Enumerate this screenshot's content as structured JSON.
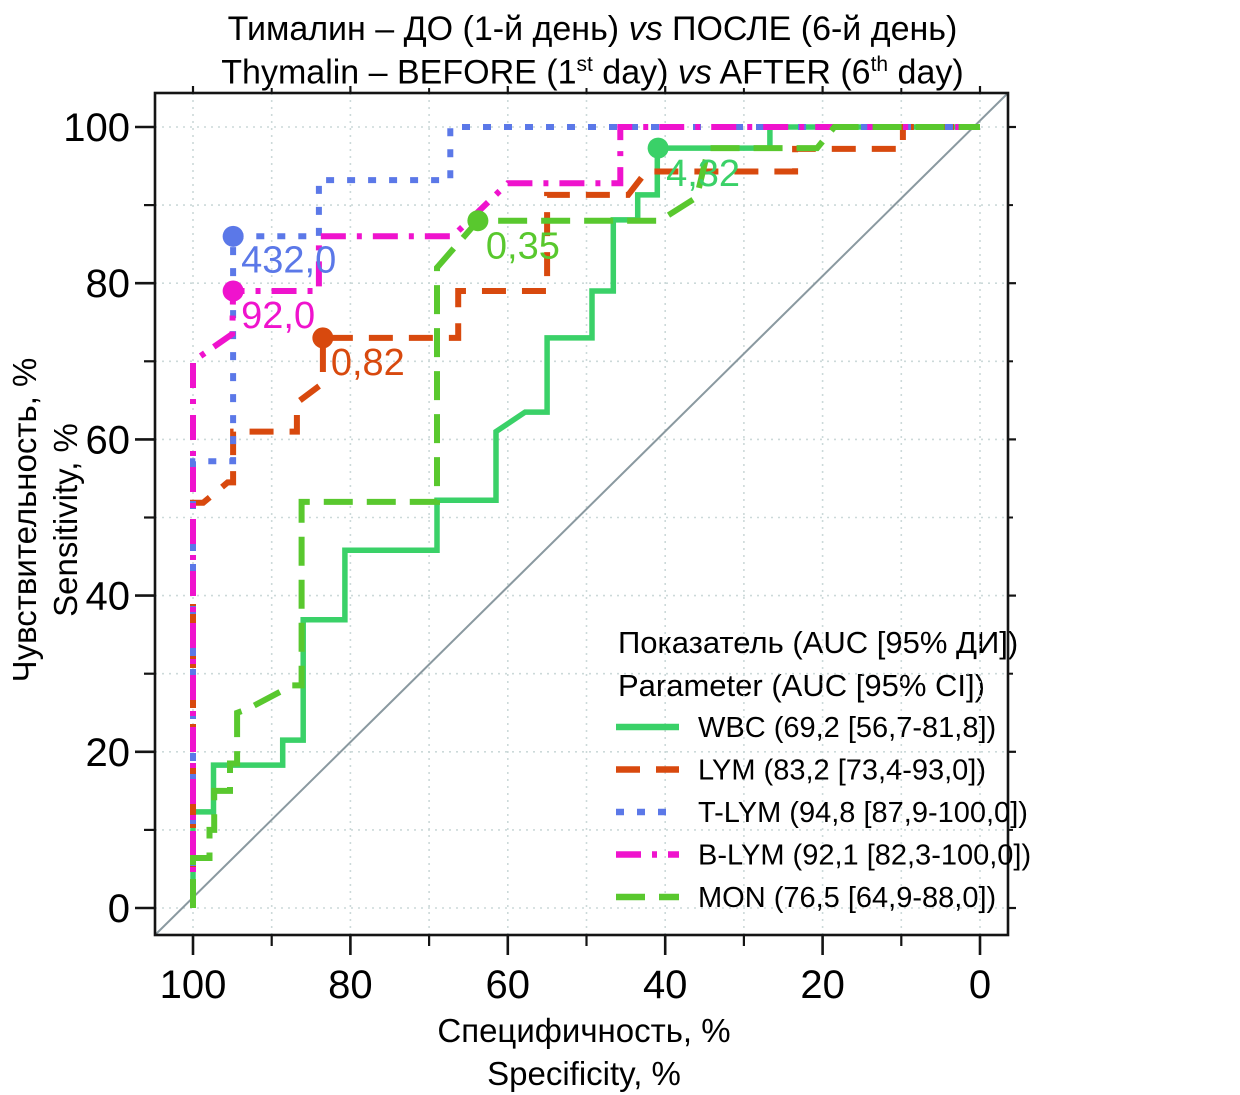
{
  "title": {
    "line1": {
      "pre": "Тималин – ДО (1-й день) ",
      "vs": "vs",
      "post": " ПОСЛЕ (6-й день)"
    },
    "line2": {
      "pre": "Thymalin – BEFORE (1",
      "sup1": "st",
      "mid1": " day) ",
      "vs": "vs",
      "mid2": " AFTER (6",
      "sup2": "th",
      "post": " day)"
    }
  },
  "axes": {
    "x": {
      "label_ru": "Специфичность, %",
      "label_en": "Specificity, %",
      "ticks": [
        "100",
        "80",
        "60",
        "40",
        "20",
        "0"
      ]
    },
    "y": {
      "label_ru": "Чувствительность, %",
      "label_en": "Sensitivity, %",
      "ticks": [
        "0",
        "20",
        "40",
        "60",
        "80",
        "100"
      ]
    }
  },
  "legend": {
    "header_ru": "Показатель (AUC [95% ДИ])",
    "header_en": "Parameter (AUC [95% CI])"
  },
  "style": {
    "grid_color": "#ccd9d9",
    "diagonal_color": "#8a99a0",
    "frame_color": "#141414",
    "text_color": "#000000"
  },
  "chart_data": {
    "type": "line",
    "subtype": "roc-curves",
    "title": "Тималин – ДО (1-й день) vs ПОСЛЕ (6-й день) / Thymalin – BEFORE (1st day) vs AFTER (6th day)",
    "xlabel": "Специфичность, % / Specificity, %",
    "ylabel": "Чувствительность, % / Sensitivity, %",
    "x_range": [
      100,
      0
    ],
    "y_range": [
      0,
      100
    ],
    "x_reversed": true,
    "grid_step": 10,
    "diagonal_reference": true,
    "legend_position": "bottom-right-inside",
    "series": [
      {
        "name": "WBC",
        "legend_label": "WBC (69,2 [56,7-81,8])",
        "auc": "69,2",
        "ci_95": "56,7-81,8",
        "color": "#3ad168",
        "dash": "solid",
        "points": [
          [
            100,
            0
          ],
          [
            100,
            12.3
          ],
          [
            97.4,
            12.3
          ],
          [
            97.4,
            18.3
          ],
          [
            88.6,
            18.3
          ],
          [
            88.6,
            21.5
          ],
          [
            86,
            21.5
          ],
          [
            86,
            36.9
          ],
          [
            80.7,
            36.9
          ],
          [
            80.7,
            45.8
          ],
          [
            69,
            45.8
          ],
          [
            69,
            52.2
          ],
          [
            61.5,
            52.2
          ],
          [
            61.5,
            61
          ],
          [
            57.8,
            63.5
          ],
          [
            55,
            63.5
          ],
          [
            55,
            73
          ],
          [
            49.3,
            73
          ],
          [
            49.3,
            79
          ],
          [
            46.6,
            79
          ],
          [
            46.6,
            88.1
          ],
          [
            43.5,
            88.1
          ],
          [
            43.5,
            91.3
          ],
          [
            41,
            91.3
          ],
          [
            41,
            97.3
          ],
          [
            26.7,
            97.3
          ],
          [
            26.7,
            100
          ],
          [
            0,
            100
          ]
        ],
        "op_point": {
          "spec": 40.9,
          "sens": 97.3,
          "threshold_label": "4,32",
          "dx": 8,
          "dy": 38
        }
      },
      {
        "name": "LYM",
        "legend_label": "LYM (83,2 [73,4-93,0])",
        "auc": "83,2",
        "ci_95": "73,4-93,0",
        "color": "#d8490e",
        "dash": "24 16",
        "points": [
          [
            100,
            0
          ],
          [
            100,
            51.9
          ],
          [
            98.7,
            51.9
          ],
          [
            95.6,
            54.5
          ],
          [
            94.9,
            54.5
          ],
          [
            94.9,
            61
          ],
          [
            86.8,
            61
          ],
          [
            86.8,
            64.7
          ],
          [
            83.5,
            67.2
          ],
          [
            83.5,
            73
          ],
          [
            66.3,
            73
          ],
          [
            66.3,
            79
          ],
          [
            55,
            79
          ],
          [
            55,
            91.3
          ],
          [
            44.7,
            91.3
          ],
          [
            42.4,
            94.3
          ],
          [
            23.5,
            94.3
          ],
          [
            23.5,
            97.2
          ],
          [
            9.8,
            97.2
          ],
          [
            9.8,
            100
          ],
          [
            0,
            100
          ]
        ],
        "op_point": {
          "spec": 83.5,
          "sens": 73,
          "threshold_label": "0,82",
          "dx": 8,
          "dy": 37
        }
      },
      {
        "name": "T-LYM",
        "legend_label": "T-LYM (94,8 [87,9-100,0])",
        "auc": "94,8",
        "ci_95": "87,9-100,0",
        "color": "#5b78e8",
        "dash": "8 13",
        "points": [
          [
            100,
            0
          ],
          [
            100,
            57.2
          ],
          [
            94.9,
            57.2
          ],
          [
            94.9,
            86
          ],
          [
            84,
            86
          ],
          [
            84,
            93.2
          ],
          [
            67.3,
            93.2
          ],
          [
            67.3,
            100
          ],
          [
            0,
            100
          ]
        ],
        "op_point": {
          "spec": 94.9,
          "sens": 86,
          "threshold_label": "432,0",
          "dx": 8,
          "dy": 36
        }
      },
      {
        "name": "B-LYM",
        "legend_label": "B-LYM (92,1 [82,3-100,0])",
        "auc": "92,1",
        "ci_95": "82,3-100,0",
        "color": "#ef13cd",
        "dash": "25 11 5 11",
        "points": [
          [
            100,
            0
          ],
          [
            100,
            70
          ],
          [
            95,
            73.5
          ],
          [
            94.9,
            79
          ],
          [
            84,
            79
          ],
          [
            84,
            86
          ],
          [
            67,
            86
          ],
          [
            60,
            92.8
          ],
          [
            45.7,
            92.8
          ],
          [
            45.7,
            100
          ],
          [
            0,
            100
          ]
        ],
        "op_point": {
          "spec": 94.9,
          "sens": 79,
          "threshold_label": "92,0",
          "dx": 8,
          "dy": 37
        }
      },
      {
        "name": "MON",
        "legend_label": "MON (76,5 [64,9-88,0])",
        "auc": "76,5",
        "ci_95": "64,9-88,0",
        "color": "#59c82e",
        "dash": "29 14",
        "points": [
          [
            100,
            0
          ],
          [
            100,
            6.4
          ],
          [
            97.9,
            6.4
          ],
          [
            97.9,
            10
          ],
          [
            97.3,
            10
          ],
          [
            97.3,
            15
          ],
          [
            95.3,
            15
          ],
          [
            95.3,
            18.5
          ],
          [
            94.4,
            18.5
          ],
          [
            94.4,
            25
          ],
          [
            93,
            25.5
          ],
          [
            87.4,
            28.5
          ],
          [
            86.2,
            28.5
          ],
          [
            86.2,
            52
          ],
          [
            69,
            52
          ],
          [
            69,
            82
          ],
          [
            63.8,
            88
          ],
          [
            40.7,
            88
          ],
          [
            36,
            91
          ],
          [
            34.5,
            97.3
          ],
          [
            20.7,
            97.3
          ],
          [
            18.5,
            100
          ],
          [
            0,
            100
          ]
        ],
        "op_point": {
          "spec": 63.8,
          "sens": 88,
          "threshold_label": "0,35",
          "dx": 8,
          "dy": 38
        }
      }
    ]
  }
}
